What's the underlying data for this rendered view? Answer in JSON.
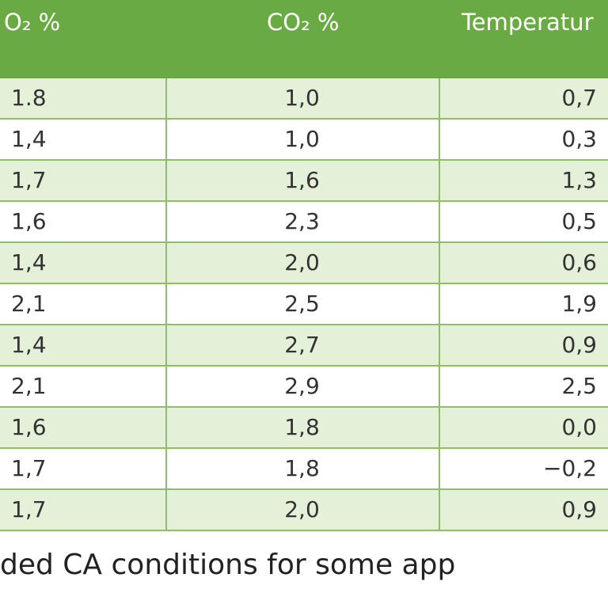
{
  "table": {
    "headers": [
      "O₂ %",
      "CO₂ %",
      "Temperatur"
    ],
    "rows": [
      [
        "1.8",
        "1,0",
        "0,7"
      ],
      [
        "1,4",
        "1,0",
        "0,3"
      ],
      [
        "1,7",
        "1,6",
        "1,3"
      ],
      [
        "1,6",
        "2,3",
        "0,5"
      ],
      [
        "1,4",
        "2,0",
        "0,6"
      ],
      [
        "2,1",
        "2,5",
        "1,9"
      ],
      [
        "1,4",
        "2,7",
        "0,9"
      ],
      [
        "2,1",
        "2,9",
        "2,5"
      ],
      [
        "1,6",
        "1,8",
        "0,0"
      ],
      [
        "1,7",
        "1,8",
        "−0,2"
      ],
      [
        "1,7",
        "2,0",
        "0,9"
      ]
    ]
  },
  "caption": "ded CA conditions for some app",
  "colors": {
    "header_bg": "#6aaa43",
    "row_shaded": "#e4f0d8",
    "grid": "#8cc063"
  }
}
